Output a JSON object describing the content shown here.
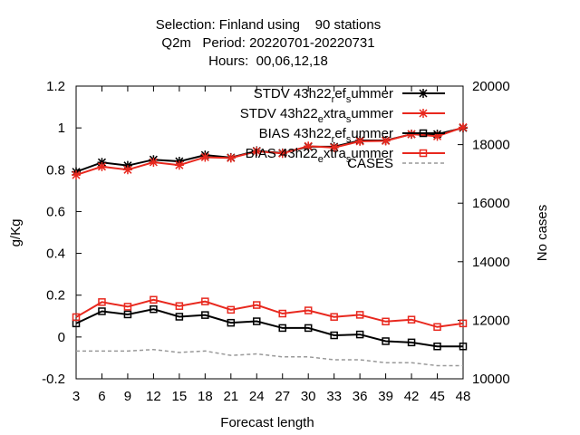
{
  "chart_data": {
    "type": "line",
    "title_lines": [
      "Selection: Finland using    90 stations",
      "Q2m   Period: 20220701-20220731",
      "Hours:  00,06,12,18"
    ],
    "xlabel": "Forecast length",
    "ylabel": "g/Kg",
    "y2label": "No cases",
    "x": [
      3,
      6,
      9,
      12,
      15,
      18,
      21,
      24,
      27,
      30,
      33,
      36,
      39,
      42,
      45,
      48
    ],
    "xlim": [
      3,
      48
    ],
    "ylim": [
      -0.2,
      1.2
    ],
    "y2lim": [
      10000,
      20000
    ],
    "yticks": [
      "-0.2",
      "0",
      "0.2",
      "0.4",
      "0.6",
      "0.8",
      "1",
      "1.2"
    ],
    "y2ticks": [
      "10000",
      "12000",
      "14000",
      "16000",
      "18000",
      "20000"
    ],
    "legend_position": "top-right",
    "grid": false,
    "series": [
      {
        "label_parts": [
          "STDV 43h22",
          "r",
          "ef",
          "s",
          "ummer"
        ],
        "color": "#000000",
        "marker": "star",
        "axis": "y",
        "values": [
          0.79,
          0.835,
          0.82,
          0.848,
          0.84,
          0.87,
          0.858,
          0.89,
          0.88,
          0.91,
          0.91,
          0.94,
          0.94,
          0.97,
          0.97,
          1.0
        ]
      },
      {
        "label_parts": [
          "STDV 43h22",
          "e",
          "xtra",
          "s",
          "ummer"
        ],
        "color": "#e8281e",
        "marker": "star",
        "axis": "y",
        "values": [
          0.775,
          0.815,
          0.8,
          0.836,
          0.822,
          0.86,
          0.856,
          0.888,
          0.878,
          0.913,
          0.906,
          0.936,
          0.938,
          0.97,
          0.96,
          1.003
        ]
      },
      {
        "label_parts": [
          "BIAS 43h22",
          "r",
          "ef",
          "s",
          "ummer"
        ],
        "color": "#000000",
        "marker": "square",
        "axis": "y",
        "values": [
          0.065,
          0.123,
          0.108,
          0.133,
          0.097,
          0.105,
          0.068,
          0.075,
          0.043,
          0.043,
          0.008,
          0.012,
          -0.02,
          -0.026,
          -0.045,
          -0.045
        ]
      },
      {
        "label_parts": [
          "BIAS 43h22",
          "e",
          "xtra",
          "s",
          "ummer"
        ],
        "color": "#e8281e",
        "marker": "square",
        "axis": "y",
        "values": [
          0.095,
          0.167,
          0.145,
          0.178,
          0.148,
          0.17,
          0.13,
          0.153,
          0.112,
          0.127,
          0.096,
          0.106,
          0.074,
          0.083,
          0.048,
          0.065
        ]
      },
      {
        "label_parts": [
          "CASES"
        ],
        "color": "#999999",
        "marker": "none",
        "dashed": true,
        "axis": "y2",
        "values": [
          10950,
          10950,
          10950,
          11000,
          10900,
          10950,
          10800,
          10850,
          10750,
          10750,
          10650,
          10650,
          10550,
          10550,
          10450,
          10450
        ]
      }
    ]
  }
}
